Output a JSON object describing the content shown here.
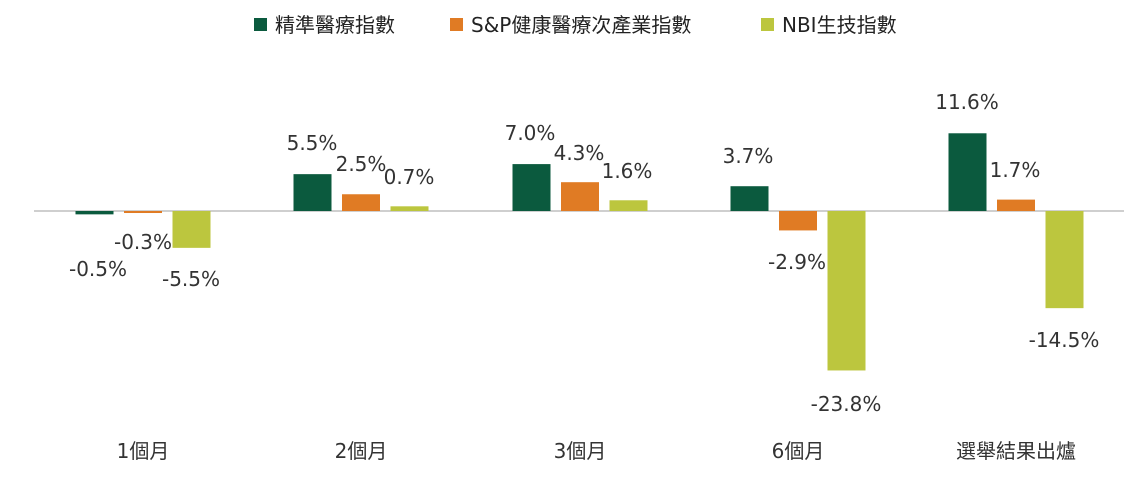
{
  "chart_data": {
    "type": "bar",
    "title": "",
    "xlabel": "",
    "ylabel": "",
    "ylim": [
      -26,
      14
    ],
    "grid": false,
    "legend_position": "top",
    "categories": [
      "1個月",
      "2個月",
      "3個月",
      "6個月",
      "選舉結果出爐"
    ],
    "series": [
      {
        "name": "精準醫療指數",
        "color": "#0b5a3e",
        "values": [
          -0.5,
          5.5,
          7.0,
          3.7,
          11.6
        ],
        "labels": [
          "-0.5%",
          "5.5%",
          "7.0%",
          "3.7%",
          "11.6%"
        ]
      },
      {
        "name": "S&P健康醫療次產業指數",
        "color": "#e07b24",
        "values": [
          -0.3,
          2.5,
          4.3,
          -2.9,
          1.7
        ],
        "labels": [
          "-0.3%",
          "2.5%",
          "4.3%",
          "-2.9%",
          "1.7%"
        ]
      },
      {
        "name": "NBI生技指數",
        "color": "#bcc63e",
        "values": [
          -5.5,
          0.7,
          1.6,
          -23.8,
          -14.5
        ],
        "labels": [
          "-5.5%",
          "0.7%",
          "1.6%",
          "-23.8%",
          "-14.5%"
        ]
      }
    ]
  }
}
